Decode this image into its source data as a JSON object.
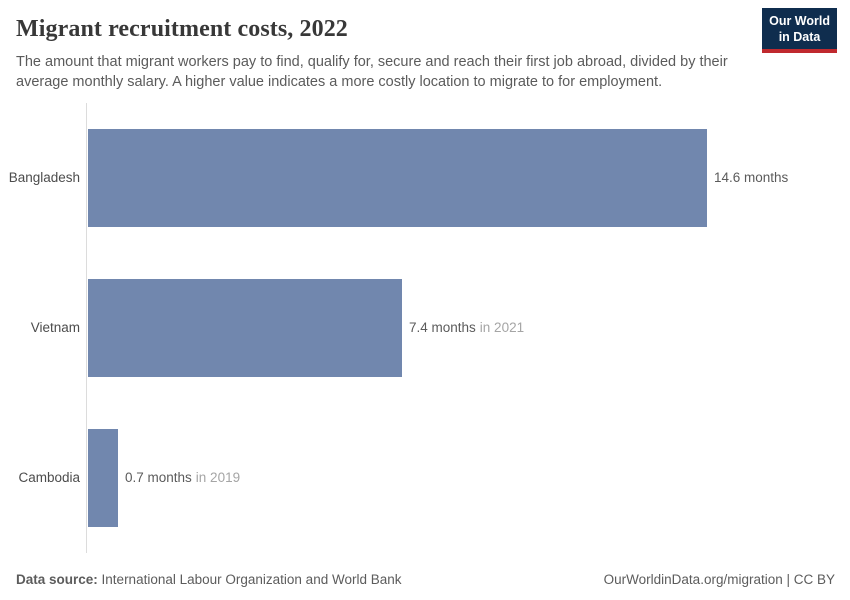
{
  "header": {
    "title": "Migrant recruitment costs, 2022",
    "subtitle": "The amount that migrant workers pay to find, qualify for, secure and reach their first job abroad, divided by their average monthly salary. A higher value indicates a more costly location to migrate to for employment.",
    "logo": {
      "line1": "Our World",
      "line2": "in Data"
    }
  },
  "chart_data": {
    "type": "bar",
    "orientation": "horizontal",
    "title": "Migrant recruitment costs, 2022",
    "unit": "months",
    "categories": [
      "Bangladesh",
      "Vietnam",
      "Cambodia"
    ],
    "values": [
      14.6,
      7.4,
      0.7
    ],
    "value_labels": [
      "14.6 months",
      "7.4 months",
      "0.7 months"
    ],
    "year_notes": [
      "",
      "in 2021",
      "in 2019"
    ],
    "xlim": [
      0,
      14.6
    ],
    "grid": false,
    "legend": false,
    "bar_color": "#7187ae"
  },
  "footer": {
    "source_label": "Data source:",
    "source_text": "International Labour Organization and World Bank",
    "attribution": "OurWorldinData.org/migration | CC BY"
  },
  "colors": {
    "bar": "#7187ae",
    "axis_line": "#dcdcdc",
    "title_text": "#383838",
    "subtitle_text": "#5b5b5b",
    "category_label": "#4c4c4c",
    "value_text": "#5b5b5b",
    "year_text": "#a5a5a5",
    "logo_background": "#0f2d4e",
    "logo_accent": "#c0292e",
    "background": "#ffffff"
  }
}
